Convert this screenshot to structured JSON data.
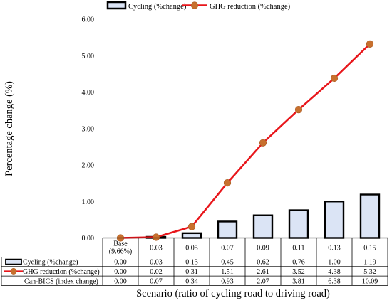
{
  "chart_data": {
    "type": "bar+line",
    "categories": [
      "Base\n(9.66%)",
      "0.03",
      "0.05",
      "0.07",
      "0.09",
      "0.11",
      "0.13",
      "0.15"
    ],
    "series": [
      {
        "name": "Cycling (%change)",
        "type": "bar",
        "color": "#dbe4f5",
        "edge": "#000000",
        "values": [
          0.0,
          0.03,
          0.13,
          0.45,
          0.62,
          0.76,
          1.0,
          1.19
        ]
      },
      {
        "name": "GHG reduction (%change)",
        "type": "line",
        "color": "#e8161b",
        "marker": "#c8702e",
        "values": [
          0.0,
          0.02,
          0.31,
          1.51,
          2.61,
          3.52,
          4.38,
          5.32
        ]
      }
    ],
    "table": {
      "rows": [
        {
          "label": "Cycling (%change)",
          "values": [
            "0.00",
            "0.03",
            "0.13",
            "0.45",
            "0.62",
            "0.76",
            "1.00",
            "1.19"
          ]
        },
        {
          "label": "GHG reduction (%change)",
          "values": [
            "0.00",
            "0.02",
            "0.31",
            "1.51",
            "2.61",
            "3.52",
            "4.38",
            "5.32"
          ]
        },
        {
          "label": "Can-BICS (index change)",
          "values": [
            "0.00",
            "0.07",
            "0.34",
            "0.93",
            "2.07",
            "3.81",
            "6.38",
            "10.09"
          ]
        }
      ]
    },
    "yticks": [
      "0.00",
      "1.00",
      "2.00",
      "3.00",
      "4.00",
      "5.00",
      "6.00"
    ],
    "ylim": [
      0,
      6
    ],
    "ylabel": "Percentage change (%)",
    "xlabel": "Scenario (ratio of cycling road to driving road)",
    "legend": "top-center",
    "grid": false
  }
}
